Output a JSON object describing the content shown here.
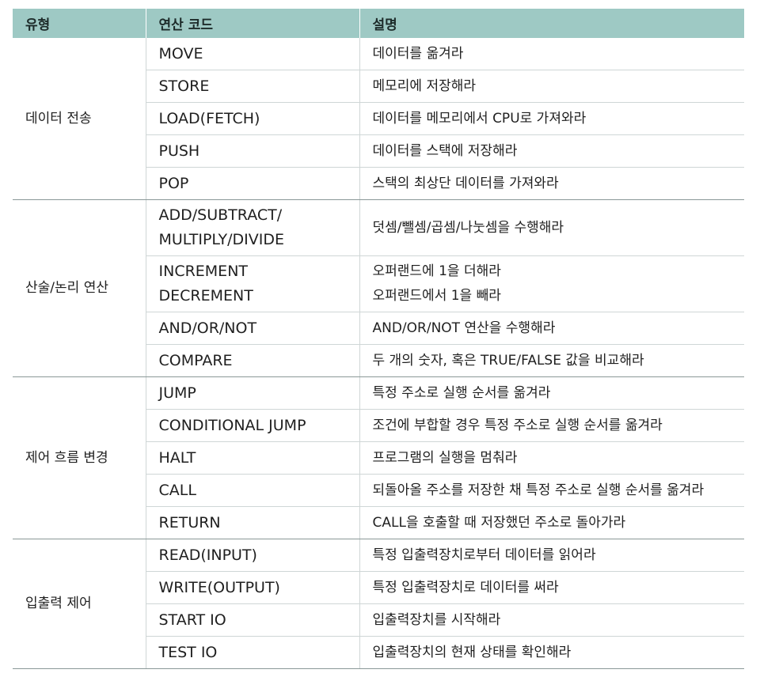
{
  "table": {
    "headers": [
      "유형",
      "연산 코드",
      "설명"
    ],
    "groups": [
      {
        "type": "데이터 전송",
        "rows": [
          {
            "op": [
              "MOVE"
            ],
            "desc": [
              "데이터를 옮겨라"
            ]
          },
          {
            "op": [
              "STORE"
            ],
            "desc": [
              "메모리에 저장해라"
            ]
          },
          {
            "op": [
              "LOAD(FETCH)"
            ],
            "desc": [
              "데이터를 메모리에서 CPU로 가져와라"
            ]
          },
          {
            "op": [
              "PUSH"
            ],
            "desc": [
              "데이터를 스택에 저장해라"
            ]
          },
          {
            "op": [
              "POP"
            ],
            "desc": [
              "스택의 최상단 데이터를 가져와라"
            ]
          }
        ]
      },
      {
        "type": "산술/논리 연산",
        "rows": [
          {
            "op": [
              "ADD/SUBTRACT/",
              "MULTIPLY/DIVIDE"
            ],
            "desc": [
              "덧셈/뺄셈/곱셈/나눗셈을 수행해라"
            ]
          },
          {
            "op": [
              "INCREMENT",
              "DECREMENT"
            ],
            "desc": [
              "오퍼랜드에 1을 더해라",
              "오퍼랜드에서 1을 빼라"
            ]
          },
          {
            "op": [
              "AND/OR/NOT"
            ],
            "desc": [
              "AND/OR/NOT 연산을 수행해라"
            ]
          },
          {
            "op": [
              "COMPARE"
            ],
            "desc": [
              "두 개의 숫자, 혹은 TRUE/FALSE 값을 비교해라"
            ]
          }
        ]
      },
      {
        "type": "제어 흐름 변경",
        "rows": [
          {
            "op": [
              "JUMP"
            ],
            "desc": [
              "특정 주소로 실행 순서를 옮겨라"
            ]
          },
          {
            "op": [
              "CONDITIONAL JUMP"
            ],
            "desc": [
              "조건에 부합할 경우 특정 주소로 실행 순서를 옮겨라"
            ]
          },
          {
            "op": [
              "HALT"
            ],
            "desc": [
              "프로그램의 실행을 멈춰라"
            ]
          },
          {
            "op": [
              "CALL"
            ],
            "desc": [
              "되돌아올 주소를 저장한 채 특정 주소로 실행 순서를 옮겨라"
            ]
          },
          {
            "op": [
              "RETURN"
            ],
            "desc": [
              "CALL을 호출할 때 저장했던 주소로 돌아가라"
            ]
          }
        ]
      },
      {
        "type": "입출력 제어",
        "rows": [
          {
            "op": [
              "READ(INPUT)"
            ],
            "desc": [
              "특정 입출력장치로부터 데이터를 읽어라"
            ]
          },
          {
            "op": [
              "WRITE(OUTPUT)"
            ],
            "desc": [
              "특정 입출력장치로 데이터를 써라"
            ]
          },
          {
            "op": [
              "START IO"
            ],
            "desc": [
              "입출력장치를 시작해라"
            ]
          },
          {
            "op": [
              "TEST IO"
            ],
            "desc": [
              "입출력장치의 현재 상태를 확인해라"
            ]
          }
        ]
      }
    ]
  }
}
